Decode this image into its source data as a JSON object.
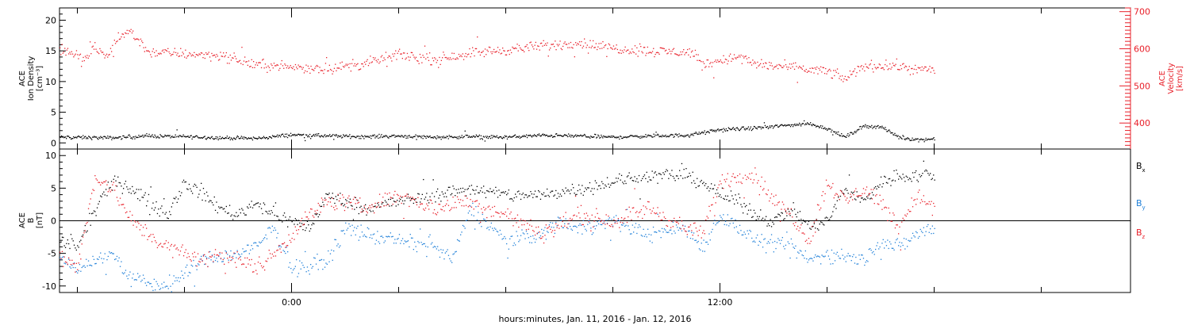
{
  "colors": {
    "density": "#000000",
    "velocity": "#e8202a",
    "bx": "#000000",
    "by": "#1e7fd8",
    "bz": "#e8202a",
    "axis_right": "#e8202a"
  },
  "chart_data": [
    {
      "type": "scatter",
      "panel": "top",
      "ylabel_lines": [
        "ACE",
        "Ion Density",
        "[cm⁻³]"
      ],
      "y2label_lines": [
        "ACE",
        "Velocity",
        "[km/s]"
      ],
      "ylim": [
        -1,
        22
      ],
      "y_ticks": [
        0,
        5,
        10,
        15,
        20
      ],
      "y_tick_labels": [
        "0",
        "5",
        "10",
        "15",
        "20"
      ],
      "y2lim": [
        330,
        710
      ],
      "y2_ticks": [
        400,
        500,
        600,
        700
      ],
      "y2_tick_labels": [
        "400",
        "500",
        "600",
        "700"
      ],
      "xlim_hours": [
        -6.5,
        23.5
      ],
      "series": [
        {
          "name": "Ion Density",
          "axis": "left",
          "x_hours": [
            -6.5,
            -5,
            -4,
            -3,
            -2,
            -1,
            0,
            1,
            2,
            3,
            4,
            5,
            6,
            7,
            8,
            9,
            10,
            11,
            11.5,
            12,
            13,
            14,
            14.5,
            15,
            15.5,
            16,
            16.5,
            17,
            17.5,
            18
          ],
          "values": [
            1.0,
            0.9,
            1.2,
            1.1,
            0.9,
            0.8,
            1.4,
            1.2,
            1.1,
            1.2,
            1.0,
            1.1,
            1.0,
            1.3,
            1.2,
            1.0,
            1.2,
            1.3,
            1.7,
            2.2,
            2.5,
            3.0,
            3.2,
            2.4,
            1.0,
            2.8,
            2.7,
            1.0,
            0.6,
            0.7
          ]
        },
        {
          "name": "Velocity",
          "axis": "right",
          "x_hours": [
            -6.5,
            -5.8,
            -5.5,
            -5.2,
            -4.8,
            -4.5,
            -4,
            -3,
            -2,
            -1,
            0,
            1,
            2,
            3,
            4,
            5,
            6,
            7,
            7.5,
            8,
            8.5,
            9,
            10,
            11,
            11.3,
            11.5,
            12,
            12.5,
            13,
            14,
            15,
            15.5,
            16,
            17,
            17.5,
            18
          ],
          "values": [
            600,
            575,
            605,
            578,
            640,
            645,
            592,
            588,
            583,
            558,
            552,
            548,
            560,
            585,
            572,
            590,
            598,
            608,
            612,
            618,
            610,
            603,
            595,
            592,
            588,
            558,
            570,
            580,
            560,
            550,
            540,
            520,
            555,
            555,
            545,
            545
          ]
        }
      ]
    },
    {
      "type": "scatter",
      "panel": "bottom",
      "ylabel_lines": [
        "ACE",
        "B",
        "[nT]"
      ],
      "ylim": [
        -11,
        11
      ],
      "y_ticks": [
        -10,
        -5,
        0,
        5,
        10
      ],
      "y_tick_labels": [
        "-10",
        "-5",
        "0",
        "5",
        "10"
      ],
      "xlim_hours": [
        -6.5,
        23.5
      ],
      "x_tick_labels": [
        "0:00",
        "12:00"
      ],
      "xlabel": "hours:minutes, Jan. 11, 2016 - Jan. 12, 2016",
      "series": [
        {
          "name": "Bx",
          "sub": "x",
          "x_hours": [
            -6.5,
            -6,
            -5.5,
            -5,
            -4.5,
            -4,
            -3.5,
            -3,
            -2.5,
            -2,
            -1.5,
            -1,
            -0.5,
            0,
            0.5,
            1,
            1.5,
            2,
            3,
            4,
            5,
            6,
            7,
            8,
            9,
            10,
            11,
            11.5,
            12,
            12.5,
            13,
            13.5,
            14,
            14.5,
            15,
            15.5,
            16,
            16.5,
            17,
            17.5,
            18
          ],
          "values": [
            -3,
            -4,
            2,
            6,
            5,
            3,
            1,
            6,
            4,
            2,
            1,
            3,
            1,
            0,
            -1,
            4,
            3,
            2,
            3,
            4,
            5,
            4,
            4,
            5,
            6,
            7,
            7,
            6,
            4,
            3,
            1,
            0,
            2,
            -1,
            0,
            5,
            3,
            6,
            7,
            7,
            7
          ]
        },
        {
          "name": "By",
          "sub": "y",
          "x_hours": [
            -6.5,
            -6,
            -5.5,
            -5,
            -4.5,
            -4,
            -3.5,
            -3,
            -2.5,
            -2,
            -1.5,
            -1,
            -0.5,
            0,
            0.5,
            1,
            1.5,
            2,
            3,
            4,
            4.5,
            5,
            6,
            7,
            7.5,
            8,
            9,
            10,
            11,
            11.5,
            12,
            13,
            14,
            14.5,
            15,
            16,
            16.5,
            17,
            17.5,
            18
          ],
          "values": [
            -6,
            -7,
            -6,
            -5,
            -9,
            -9.5,
            -10,
            -8,
            -6,
            -5.5,
            -5,
            -4,
            -1,
            -7,
            -7,
            -6,
            -1,
            -2,
            -3,
            -4,
            -6,
            2,
            -3,
            -2,
            0,
            -1,
            0,
            -2,
            -1,
            -4,
            1,
            -3,
            -4,
            -6,
            -5,
            -6,
            -3,
            -4,
            -2,
            -1
          ]
        },
        {
          "name": "Bz",
          "sub": "z",
          "x_hours": [
            -6.5,
            -6,
            -5.5,
            -5,
            -4.5,
            -4,
            -3.5,
            -3,
            -2.5,
            -2,
            -1.5,
            -1,
            -0.5,
            0,
            0.5,
            1,
            1.5,
            2,
            3,
            4,
            5,
            6,
            7,
            8,
            9,
            10,
            11,
            11.5,
            12,
            12.5,
            13,
            13.5,
            14,
            14.5,
            15,
            15.5,
            16,
            16.5,
            17,
            17.5,
            18
          ],
          "values": [
            -5,
            -7,
            7,
            5,
            0,
            -2,
            -4,
            -5,
            -6,
            -5,
            -6,
            -7,
            -5,
            -2,
            1,
            3,
            3,
            2,
            4,
            2,
            3,
            1,
            -2,
            1,
            0,
            2,
            -1,
            -2,
            6,
            7,
            7,
            3,
            1,
            -3,
            6,
            3,
            5,
            3,
            -1,
            4,
            2
          ]
        }
      ]
    }
  ]
}
